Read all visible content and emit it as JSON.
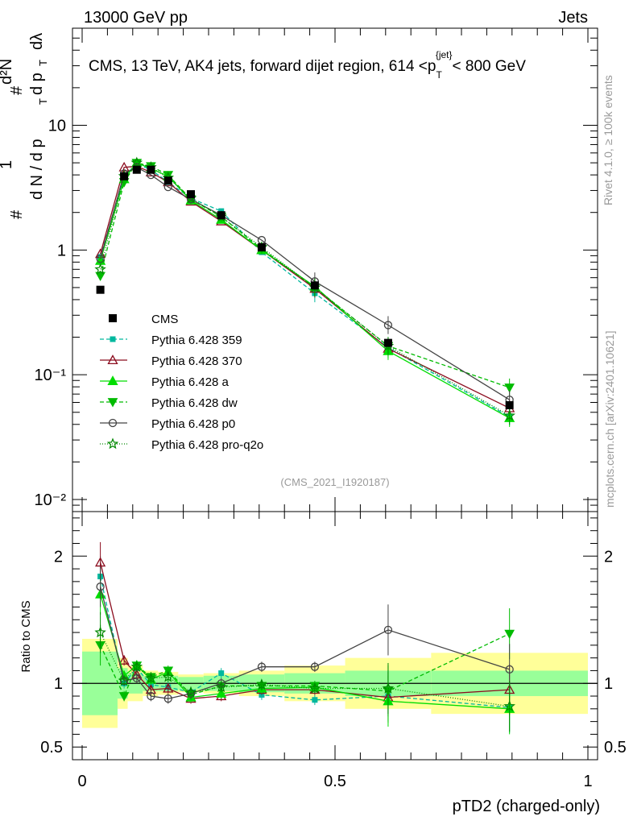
{
  "header": {
    "left": "13000 GeV pp",
    "right": "Jets"
  },
  "side_labels": {
    "top": "Rivet 4.1.0, ≥ 100k events",
    "bottom": "mcplots.cern.ch [arXiv:2401.10621]"
  },
  "chart_data": [
    {
      "type": "line",
      "title": "CMS, 13 TeV, AK4 jets, forward dijet region, 614 < p_T^{jet} < 800 GeV",
      "title_parts": {
        "main": "CMS, 13 TeV, AK4 jets, forward dijet region, 614 <",
        "p": "p",
        "sub": "T",
        "sup": "{jet}",
        "end": "< 800 GeV"
      },
      "ylabel": "1/N dN/d pT dλ",
      "ylabel_parts": {
        "a": "#",
        "b": "1",
        "c": "d N / d p",
        "d": "T",
        "e": "#",
        "f": "d²N",
        "g": "d p",
        "h": "T",
        "i": "dλ"
      },
      "yscale": "log",
      "ylim": [
        0.008,
        60
      ],
      "xlim": [
        0,
        1
      ],
      "ytick_labels": [
        "10⁻²",
        "10⁻¹",
        "1",
        "10"
      ],
      "ytick_values": [
        0.01,
        0.1,
        1,
        10
      ],
      "watermark": "(CMS_2021_I1920187)",
      "legend_position": "lower-left",
      "data_series": {
        "name": "CMS",
        "bin_edges": [
          0.0,
          0.07,
          0.09,
          0.12,
          0.15,
          0.19,
          0.24,
          0.31,
          0.4,
          0.52,
          0.69,
          1.0
        ],
        "x": [
          0.036,
          0.083,
          0.108,
          0.136,
          0.17,
          0.215,
          0.275,
          0.355,
          0.46,
          0.605,
          0.845
        ],
        "values": [
          0.48,
          3.9,
          4.4,
          4.4,
          3.6,
          2.8,
          1.9,
          1.05,
          0.52,
          0.18,
          0.057
        ],
        "rel_err_green": [
          0.25,
          0.12,
          0.08,
          0.06,
          0.06,
          0.05,
          0.06,
          0.07,
          0.08,
          0.1,
          0.1
        ],
        "rel_err_yellow": [
          0.35,
          0.2,
          0.14,
          0.1,
          0.09,
          0.07,
          0.08,
          0.1,
          0.14,
          0.2,
          0.24
        ]
      },
      "series": [
        {
          "name": "Pythia 6.428 359",
          "color": "#00b89e",
          "dash": "5,3",
          "marker": "square",
          "values": [
            0.88,
            3.9,
            4.9,
            4.4,
            3.5,
            2.6,
            2.05,
            0.96,
            0.45,
            0.165,
            0.046
          ],
          "ratio": [
            1.84,
            1.0,
            1.12,
            0.99,
            0.97,
            0.93,
            1.08,
            0.91,
            0.87,
            0.9,
            0.81
          ]
        },
        {
          "name": "Pythia 6.428 370",
          "color": "#8b0c1e",
          "dash": "",
          "marker": "triangle-open",
          "values": [
            0.93,
            4.6,
            4.7,
            4.2,
            3.5,
            2.45,
            1.7,
            1.0,
            0.49,
            0.162,
            0.054
          ],
          "ratio": [
            1.95,
            1.18,
            1.07,
            0.95,
            0.96,
            0.88,
            0.9,
            0.95,
            0.95,
            0.89,
            0.95
          ]
        },
        {
          "name": "Pythia 6.428 a",
          "color": "#00dd00",
          "dash": "",
          "marker": "triangle",
          "values": [
            0.82,
            3.7,
            5.0,
            4.5,
            3.9,
            2.5,
            1.75,
            1.0,
            0.51,
            0.155,
            0.045
          ],
          "ratio": [
            1.7,
            1.06,
            1.14,
            1.03,
            1.09,
            0.89,
            0.92,
            0.96,
            0.97,
            0.86,
            0.8
          ]
        },
        {
          "name": "Pythia 6.428 dw",
          "color": "#00bb00",
          "dash": "5,3",
          "marker": "triangle-down",
          "values": [
            0.62,
            3.5,
            5.0,
            4.7,
            4.0,
            2.55,
            1.85,
            1.02,
            0.5,
            0.17,
            0.079
          ],
          "ratio": [
            1.3,
            0.9,
            1.14,
            1.05,
            1.1,
            0.91,
            0.98,
            0.98,
            0.98,
            0.94,
            1.39
          ]
        },
        {
          "name": "Pythia 6.428 p0",
          "color": "#444444",
          "dash": "",
          "marker": "circle-open",
          "values": [
            0.85,
            4.1,
            4.6,
            4.0,
            3.2,
            2.55,
            1.9,
            1.2,
            0.56,
            0.25,
            0.063
          ],
          "ratio": [
            1.76,
            1.02,
            1.04,
            0.9,
            0.88,
            0.92,
            1.0,
            1.13,
            1.13,
            1.42,
            1.11
          ]
        },
        {
          "name": "Pythia 6.428 pro-q2o",
          "color": "#008800",
          "dash": "1,2",
          "marker": "star-open",
          "values": [
            0.7,
            3.9,
            5.0,
            4.6,
            3.8,
            2.6,
            1.85,
            1.05,
            0.5,
            0.17,
            0.047
          ],
          "ratio": [
            1.4,
            1.02,
            1.13,
            1.04,
            1.05,
            0.93,
            0.97,
            0.99,
            0.96,
            0.96,
            0.82
          ]
        }
      ]
    },
    {
      "type": "line",
      "title": "",
      "ylabel": "Ratio to CMS",
      "xlabel": "pTD2 (charged-only)",
      "ylim": [
        0.4,
        2.35
      ],
      "xlim": [
        0,
        1
      ],
      "ytick_labels": [
        "0.5",
        "1",
        "2"
      ],
      "ytick_values": [
        0.5,
        1,
        2
      ],
      "xtick_labels": [
        "0",
        "0.5",
        "1"
      ],
      "xtick_values": [
        0,
        0.5,
        1
      ]
    }
  ]
}
